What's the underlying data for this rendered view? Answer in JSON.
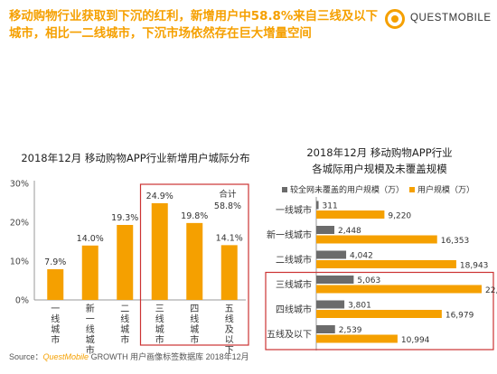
{
  "headline": "移动购物行业获取到下沉的红利，新增用户中58.8%来自三线及以下城市，相比一二线城市，下沉市场依然存在巨大增量空间",
  "logo": {
    "icon": "questmobile-logo-icon",
    "text": "QUESTMOBILE"
  },
  "colors": {
    "accent": "#f5a000",
    "gray": "#6b6b6b",
    "highlight_border": "#cc3333"
  },
  "chart_data": [
    {
      "type": "bar",
      "title": "2018年12月 移动购物APP行业新增用户城际分布",
      "categories": [
        "一线城市",
        "新一线城市",
        "二线城市",
        "三线城市",
        "四线城市",
        "五线及以下"
      ],
      "values": [
        7.9,
        14.0,
        19.3,
        24.9,
        19.8,
        14.1
      ],
      "value_labels": [
        "7.9%",
        "14.0%",
        "19.3%",
        "24.9%",
        "19.8%",
        "14.1%"
      ],
      "yticks": [
        "0%",
        "10%",
        "20%",
        "30%"
      ],
      "ylim": [
        0,
        30
      ],
      "annotation": [
        "合计",
        "58.8%"
      ],
      "color": "#f5a000"
    },
    {
      "type": "bar",
      "title": "2018年12月 移动购物APP行业 各城际用户规模及未覆盖规模",
      "title_lines": [
        "2018年12月 移动购物APP行业",
        "各城际用户规模及未覆盖规模"
      ],
      "categories": [
        "一线城市",
        "新一线城市",
        "二线城市",
        "三线城市",
        "四线城市",
        "五线及以下"
      ],
      "series": [
        {
          "name": "较全网未覆盖的用户规模（万）",
          "values": [
            311,
            2448,
            4042,
            5063,
            3801,
            2539
          ],
          "labels": [
            "311",
            "2,448",
            "4,042",
            "5,063",
            "3,801",
            "2,539"
          ],
          "color": "#6b6b6b"
        },
        {
          "name": "用户规模（万）",
          "values": [
            9220,
            16353,
            18943,
            22376,
            16979,
            10994
          ],
          "labels": [
            "9,220",
            "16,353",
            "18,943",
            "22,376",
            "16,979",
            "10,994"
          ],
          "color": "#f5a000"
        }
      ],
      "legend_position": "top"
    }
  ],
  "source": {
    "prefix": "Source：",
    "brand_a": "QuestMobile",
    "brand_b": "GROWTH",
    "rest": " 用户画像标签数据库 2018年12月"
  }
}
